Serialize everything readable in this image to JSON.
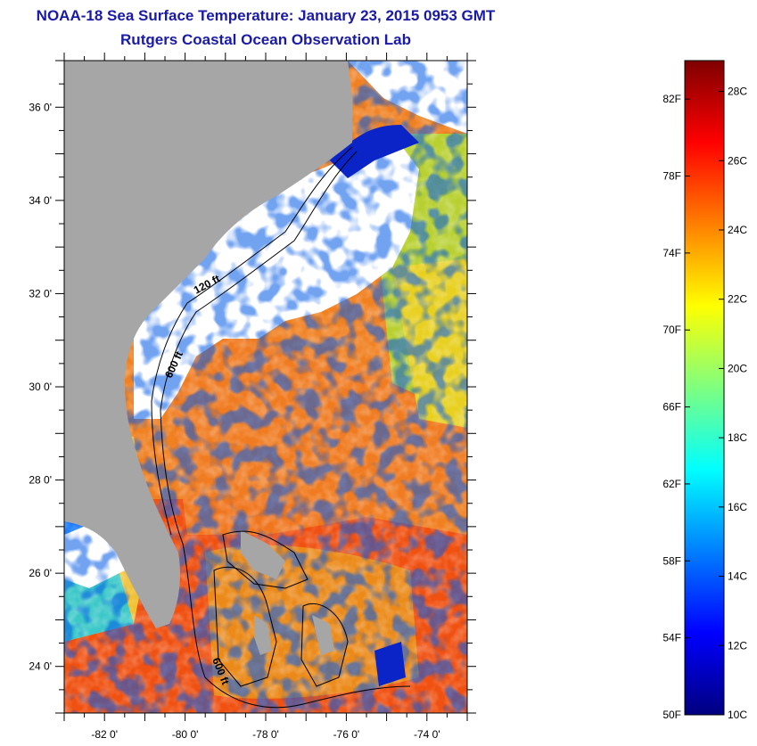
{
  "header": {
    "title": "NOAA-18 Sea Surface Temperature:  January 23, 2015 0953 GMT",
    "subtitle": "Rutgers Coastal Ocean Observation Lab"
  },
  "map": {
    "lon_range": [
      -83.0,
      -73.0
    ],
    "lat_range": [
      23.0,
      37.0
    ],
    "x_ticks": [
      {
        "lon": -82,
        "label": "-82 0'"
      },
      {
        "lon": -80,
        "label": "-80 0'"
      },
      {
        "lon": -78,
        "label": "-78 0'"
      },
      {
        "lon": -76,
        "label": "-76 0'"
      },
      {
        "lon": -74,
        "label": "-74 0'"
      }
    ],
    "y_ticks": [
      {
        "lat": 24,
        "label": "24 0'"
      },
      {
        "lat": 26,
        "label": "26 0'"
      },
      {
        "lat": 28,
        "label": "28 0'"
      },
      {
        "lat": 30,
        "label": "30 0'"
      },
      {
        "lat": 32,
        "label": "32 0'"
      },
      {
        "lat": 34,
        "label": "34 0'"
      },
      {
        "lat": 36,
        "label": "36 0'"
      }
    ],
    "contour_labels": [
      "120 ft",
      "600 ft",
      "600 ft"
    ],
    "colors": {
      "land": "#a6a6a6",
      "cloud": "#ffffff",
      "contour": "#000000"
    }
  },
  "colorbar": {
    "min_f": 50,
    "max_f": 84,
    "fahrenheit_ticks": [
      {
        "value": 50,
        "label": "50F"
      },
      {
        "value": 54,
        "label": "54F"
      },
      {
        "value": 58,
        "label": "58F"
      },
      {
        "value": 62,
        "label": "62F"
      },
      {
        "value": 66,
        "label": "66F"
      },
      {
        "value": 70,
        "label": "70F"
      },
      {
        "value": 74,
        "label": "74F"
      },
      {
        "value": 78,
        "label": "78F"
      },
      {
        "value": 82,
        "label": "82F"
      }
    ],
    "celsius_ticks": [
      {
        "value": 10,
        "label": "10C"
      },
      {
        "value": 12,
        "label": "12C"
      },
      {
        "value": 14,
        "label": "14C"
      },
      {
        "value": 16,
        "label": "16C"
      },
      {
        "value": 18,
        "label": "18C"
      },
      {
        "value": 20,
        "label": "20C"
      },
      {
        "value": 22,
        "label": "22C"
      },
      {
        "value": 24,
        "label": "24C"
      },
      {
        "value": 26,
        "label": "26C"
      },
      {
        "value": 28,
        "label": "28C"
      }
    ],
    "colormap": [
      "#00007f",
      "#0000ff",
      "#007fff",
      "#00ffff",
      "#7fff7f",
      "#ffff00",
      "#ff7f00",
      "#ff0000",
      "#7f0000"
    ]
  }
}
